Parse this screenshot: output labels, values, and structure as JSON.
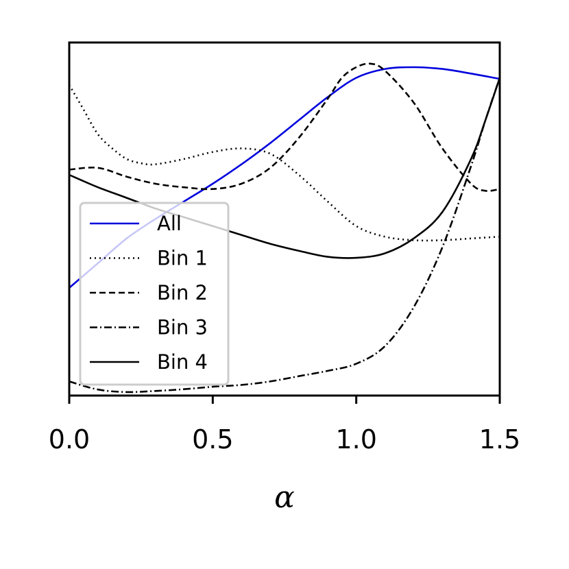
{
  "chart_data": {
    "type": "line",
    "title": "",
    "xlabel": "α",
    "ylabel": "",
    "xlim": [
      0.0,
      1.5
    ],
    "ylim": [
      0,
      1
    ],
    "y_ticks_shown": false,
    "x_ticks": [
      0.0,
      0.5,
      1.0,
      1.5
    ],
    "x_tick_labels": [
      "0.0",
      "0.5",
      "1.0",
      "1.5"
    ],
    "grid": false,
    "legend": {
      "placement": "lower-left"
    },
    "series": [
      {
        "name": "All",
        "color": "#0000dd",
        "style": "solid",
        "x": [
          0.0,
          0.1,
          0.2,
          0.3,
          0.4,
          0.5,
          0.6,
          0.7,
          0.8,
          0.9,
          1.0,
          1.1,
          1.2,
          1.3,
          1.4,
          1.5
        ],
        "y": [
          0.305,
          0.375,
          0.445,
          0.5,
          0.55,
          0.6,
          0.655,
          0.715,
          0.78,
          0.845,
          0.9,
          0.925,
          0.93,
          0.925,
          0.912,
          0.897
        ]
      },
      {
        "name": "Bin 1",
        "color": "#000000",
        "style": "dotted",
        "x": [
          0.0,
          0.05,
          0.1,
          0.15,
          0.2,
          0.25,
          0.3,
          0.4,
          0.5,
          0.6,
          0.7,
          0.8,
          0.9,
          1.0,
          1.1,
          1.2,
          1.3,
          1.4,
          1.5
        ],
        "y": [
          0.88,
          0.81,
          0.74,
          0.7,
          0.67,
          0.658,
          0.655,
          0.67,
          0.69,
          0.7,
          0.685,
          0.625,
          0.55,
          0.48,
          0.45,
          0.44,
          0.44,
          0.445,
          0.45
        ]
      },
      {
        "name": "Bin 2",
        "color": "#000000",
        "style": "dashed",
        "x": [
          0.0,
          0.1,
          0.2,
          0.3,
          0.4,
          0.5,
          0.6,
          0.7,
          0.8,
          0.9,
          0.95,
          1.0,
          1.05,
          1.1,
          1.2,
          1.3,
          1.4,
          1.45,
          1.5
        ],
        "y": [
          0.64,
          0.645,
          0.62,
          0.6,
          0.59,
          0.585,
          0.6,
          0.645,
          0.73,
          0.84,
          0.9,
          0.93,
          0.94,
          0.92,
          0.83,
          0.7,
          0.6,
          0.58,
          0.585
        ]
      },
      {
        "name": "Bin 3",
        "color": "#000000",
        "style": "dashdot",
        "x": [
          0.0,
          0.1,
          0.2,
          0.3,
          0.4,
          0.5,
          0.6,
          0.7,
          0.8,
          0.9,
          1.0,
          1.1,
          1.2,
          1.3,
          1.4,
          1.45,
          1.5
        ],
        "y": [
          0.04,
          0.017,
          0.01,
          0.013,
          0.018,
          0.025,
          0.03,
          0.04,
          0.055,
          0.07,
          0.09,
          0.14,
          0.25,
          0.42,
          0.65,
          0.78,
          0.9
        ]
      },
      {
        "name": "Bin 4",
        "color": "#000000",
        "style": "solid",
        "x": [
          0.0,
          0.1,
          0.2,
          0.3,
          0.4,
          0.5,
          0.6,
          0.7,
          0.8,
          0.9,
          1.0,
          1.1,
          1.2,
          1.3,
          1.4,
          1.45,
          1.5
        ],
        "y": [
          0.625,
          0.59,
          0.56,
          0.53,
          0.505,
          0.48,
          0.455,
          0.43,
          0.41,
          0.393,
          0.39,
          0.403,
          0.445,
          0.52,
          0.67,
          0.78,
          0.9
        ]
      }
    ]
  }
}
